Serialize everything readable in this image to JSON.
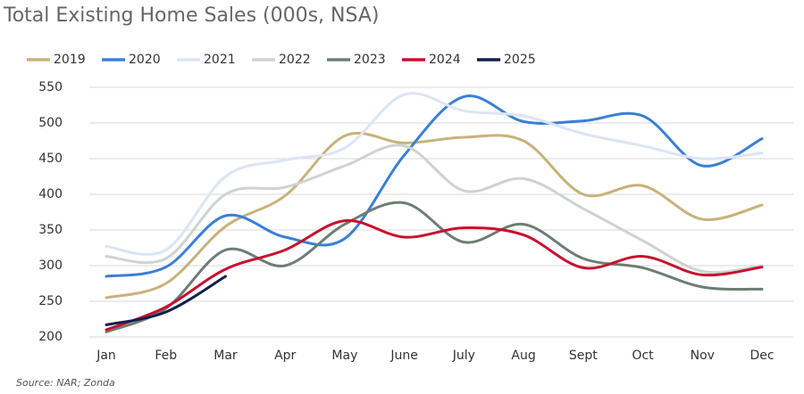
{
  "chart_data": {
    "type": "line",
    "title": "Total Existing Home Sales (000s, NSA)",
    "source": "Source: NAR; Zonda",
    "categories": [
      "Jan",
      "Feb",
      "Mar",
      "Apr",
      "May",
      "June",
      "July",
      "Aug",
      "Sept",
      "Oct",
      "Nov",
      "Dec"
    ],
    "series": [
      {
        "name": "2019",
        "color": "#c8b27a",
        "values": [
          255,
          275,
          355,
          398,
          482,
          472,
          480,
          475,
          400,
          412,
          365,
          385
        ]
      },
      {
        "name": "2020",
        "color": "#3a7fd5",
        "values": [
          285,
          298,
          370,
          340,
          338,
          455,
          537,
          502,
          503,
          510,
          440,
          478
        ]
      },
      {
        "name": "2021",
        "color": "#dde4f3",
        "values": [
          327,
          322,
          425,
          448,
          465,
          540,
          517,
          510,
          485,
          468,
          450,
          458
        ]
      },
      {
        "name": "2022",
        "color": "#cfd3cf",
        "values": [
          313,
          310,
          400,
          410,
          440,
          468,
          405,
          422,
          380,
          335,
          292,
          300
        ]
      },
      {
        "name": "2023",
        "color": "#6e7d73",
        "values": [
          207,
          240,
          322,
          300,
          358,
          388,
          333,
          358,
          310,
          297,
          270,
          267
        ]
      },
      {
        "name": "2024",
        "color": "#c8102e",
        "values": [
          210,
          242,
          295,
          322,
          363,
          340,
          353,
          343,
          297,
          313,
          287,
          298
        ]
      },
      {
        "name": "2025",
        "color": "#0f1f4f",
        "values": [
          217,
          235,
          285,
          null,
          null,
          null,
          null,
          null,
          null,
          null,
          null,
          null
        ]
      }
    ],
    "ylim": [
      200,
      550
    ],
    "yticks": [
      200,
      250,
      300,
      350,
      400,
      450,
      500,
      550
    ],
    "grid": true,
    "legend": "top"
  }
}
